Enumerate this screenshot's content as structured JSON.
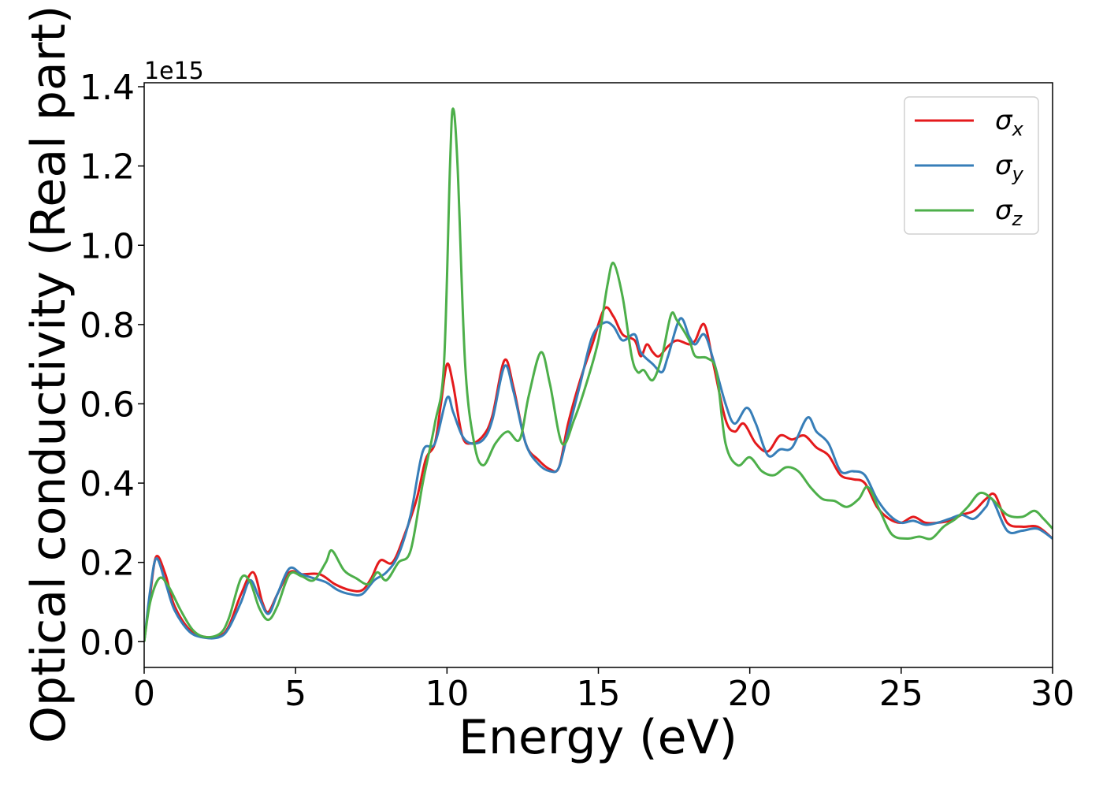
{
  "chart_data": {
    "type": "line",
    "title": "",
    "xlabel": "Energy (eV)",
    "ylabel": "Optical conductivity (Real part)",
    "y_offset_label": "1e15",
    "xlim": [
      0,
      30
    ],
    "ylim": [
      -0.065,
      1.41
    ],
    "xticks": [
      0,
      5,
      10,
      15,
      20,
      25,
      30
    ],
    "xtick_labels": [
      "0",
      "5",
      "10",
      "15",
      "20",
      "25",
      "30"
    ],
    "yticks": [
      0.0,
      0.2,
      0.4,
      0.6,
      0.8,
      1.0,
      1.2,
      1.4
    ],
    "ytick_labels": [
      "0.0",
      "0.2",
      "0.4",
      "0.6",
      "0.8",
      "1.0",
      "1.2",
      "1.4"
    ],
    "grid": false,
    "legend_position": "top-right",
    "series": [
      {
        "name": "σ_x",
        "legend_main": "σ",
        "legend_sub": "x",
        "color": "#e41a1c",
        "points": [
          [
            0,
            0.0
          ],
          [
            0.2,
            0.12
          ],
          [
            0.4,
            0.215
          ],
          [
            0.7,
            0.17
          ],
          [
            1.0,
            0.09
          ],
          [
            1.5,
            0.03
          ],
          [
            2.0,
            0.012
          ],
          [
            2.5,
            0.015
          ],
          [
            2.8,
            0.04
          ],
          [
            3.2,
            0.12
          ],
          [
            3.6,
            0.175
          ],
          [
            3.9,
            0.1
          ],
          [
            4.1,
            0.075
          ],
          [
            4.4,
            0.12
          ],
          [
            4.8,
            0.175
          ],
          [
            5.2,
            0.17
          ],
          [
            5.8,
            0.17
          ],
          [
            6.3,
            0.145
          ],
          [
            6.8,
            0.13
          ],
          [
            7.2,
            0.13
          ],
          [
            7.5,
            0.16
          ],
          [
            7.8,
            0.205
          ],
          [
            8.2,
            0.2
          ],
          [
            8.6,
            0.27
          ],
          [
            9.0,
            0.36
          ],
          [
            9.3,
            0.46
          ],
          [
            9.6,
            0.5
          ],
          [
            9.8,
            0.6
          ],
          [
            10.0,
            0.7
          ],
          [
            10.2,
            0.65
          ],
          [
            10.5,
            0.52
          ],
          [
            10.8,
            0.5
          ],
          [
            11.2,
            0.52
          ],
          [
            11.5,
            0.57
          ],
          [
            11.9,
            0.71
          ],
          [
            12.2,
            0.64
          ],
          [
            12.6,
            0.5
          ],
          [
            13.0,
            0.46
          ],
          [
            13.4,
            0.435
          ],
          [
            13.7,
            0.44
          ],
          [
            14.0,
            0.55
          ],
          [
            14.4,
            0.66
          ],
          [
            14.8,
            0.75
          ],
          [
            15.2,
            0.84
          ],
          [
            15.5,
            0.82
          ],
          [
            15.8,
            0.775
          ],
          [
            16.2,
            0.76
          ],
          [
            16.4,
            0.72
          ],
          [
            16.6,
            0.75
          ],
          [
            16.8,
            0.73
          ],
          [
            17.0,
            0.72
          ],
          [
            17.3,
            0.745
          ],
          [
            17.6,
            0.76
          ],
          [
            18.0,
            0.75
          ],
          [
            18.2,
            0.76
          ],
          [
            18.5,
            0.8
          ],
          [
            18.8,
            0.7
          ],
          [
            19.2,
            0.56
          ],
          [
            19.5,
            0.53
          ],
          [
            19.8,
            0.55
          ],
          [
            20.2,
            0.5
          ],
          [
            20.6,
            0.48
          ],
          [
            21.0,
            0.52
          ],
          [
            21.4,
            0.51
          ],
          [
            21.8,
            0.52
          ],
          [
            22.2,
            0.49
          ],
          [
            22.6,
            0.47
          ],
          [
            23.0,
            0.42
          ],
          [
            23.4,
            0.41
          ],
          [
            23.8,
            0.4
          ],
          [
            24.2,
            0.34
          ],
          [
            24.6,
            0.31
          ],
          [
            25.0,
            0.3
          ],
          [
            25.4,
            0.315
          ],
          [
            25.8,
            0.3
          ],
          [
            26.2,
            0.3
          ],
          [
            26.6,
            0.305
          ],
          [
            27.0,
            0.32
          ],
          [
            27.4,
            0.33
          ],
          [
            27.8,
            0.36
          ],
          [
            28.1,
            0.37
          ],
          [
            28.5,
            0.3
          ],
          [
            29.0,
            0.29
          ],
          [
            29.5,
            0.29
          ],
          [
            30.0,
            0.26
          ]
        ]
      },
      {
        "name": "σ_y",
        "legend_main": "σ",
        "legend_sub": "y",
        "color": "#377eb8",
        "points": [
          [
            0,
            0.0
          ],
          [
            0.2,
            0.13
          ],
          [
            0.4,
            0.21
          ],
          [
            0.7,
            0.15
          ],
          [
            1.0,
            0.08
          ],
          [
            1.5,
            0.025
          ],
          [
            2.0,
            0.01
          ],
          [
            2.5,
            0.012
          ],
          [
            2.8,
            0.035
          ],
          [
            3.2,
            0.1
          ],
          [
            3.5,
            0.155
          ],
          [
            3.8,
            0.11
          ],
          [
            4.1,
            0.07
          ],
          [
            4.4,
            0.12
          ],
          [
            4.8,
            0.185
          ],
          [
            5.2,
            0.17
          ],
          [
            5.6,
            0.16
          ],
          [
            6.0,
            0.15
          ],
          [
            6.4,
            0.13
          ],
          [
            6.8,
            0.12
          ],
          [
            7.2,
            0.12
          ],
          [
            7.6,
            0.155
          ],
          [
            8.0,
            0.175
          ],
          [
            8.4,
            0.22
          ],
          [
            8.8,
            0.32
          ],
          [
            9.2,
            0.48
          ],
          [
            9.6,
            0.5
          ],
          [
            10.0,
            0.615
          ],
          [
            10.2,
            0.58
          ],
          [
            10.5,
            0.52
          ],
          [
            10.8,
            0.5
          ],
          [
            11.2,
            0.51
          ],
          [
            11.5,
            0.56
          ],
          [
            11.9,
            0.695
          ],
          [
            12.2,
            0.63
          ],
          [
            12.6,
            0.5
          ],
          [
            13.0,
            0.45
          ],
          [
            13.4,
            0.43
          ],
          [
            13.7,
            0.44
          ],
          [
            14.0,
            0.53
          ],
          [
            14.4,
            0.65
          ],
          [
            14.8,
            0.77
          ],
          [
            15.2,
            0.805
          ],
          [
            15.5,
            0.795
          ],
          [
            15.8,
            0.76
          ],
          [
            16.2,
            0.775
          ],
          [
            16.4,
            0.73
          ],
          [
            16.8,
            0.7
          ],
          [
            17.1,
            0.68
          ],
          [
            17.3,
            0.72
          ],
          [
            17.7,
            0.815
          ],
          [
            18.0,
            0.77
          ],
          [
            18.2,
            0.75
          ],
          [
            18.5,
            0.775
          ],
          [
            18.8,
            0.71
          ],
          [
            19.2,
            0.6
          ],
          [
            19.5,
            0.55
          ],
          [
            19.9,
            0.59
          ],
          [
            20.2,
            0.55
          ],
          [
            20.6,
            0.47
          ],
          [
            21.0,
            0.485
          ],
          [
            21.4,
            0.49
          ],
          [
            21.9,
            0.565
          ],
          [
            22.2,
            0.53
          ],
          [
            22.6,
            0.5
          ],
          [
            23.0,
            0.43
          ],
          [
            23.4,
            0.43
          ],
          [
            23.8,
            0.42
          ],
          [
            24.2,
            0.36
          ],
          [
            24.6,
            0.32
          ],
          [
            25.0,
            0.3
          ],
          [
            25.4,
            0.305
          ],
          [
            25.8,
            0.295
          ],
          [
            26.2,
            0.3
          ],
          [
            26.6,
            0.31
          ],
          [
            27.0,
            0.32
          ],
          [
            27.4,
            0.31
          ],
          [
            27.8,
            0.34
          ],
          [
            28.0,
            0.36
          ],
          [
            28.5,
            0.28
          ],
          [
            29.0,
            0.28
          ],
          [
            29.5,
            0.285
          ],
          [
            30.0,
            0.26
          ]
        ]
      },
      {
        "name": "σ_z",
        "legend_main": "σ",
        "legend_sub": "z",
        "color": "#4daf4a",
        "points": [
          [
            0,
            0.0
          ],
          [
            0.2,
            0.1
          ],
          [
            0.5,
            0.16
          ],
          [
            0.8,
            0.14
          ],
          [
            1.2,
            0.08
          ],
          [
            1.6,
            0.03
          ],
          [
            2.0,
            0.012
          ],
          [
            2.5,
            0.02
          ],
          [
            2.8,
            0.06
          ],
          [
            3.2,
            0.16
          ],
          [
            3.5,
            0.15
          ],
          [
            3.8,
            0.085
          ],
          [
            4.1,
            0.055
          ],
          [
            4.4,
            0.09
          ],
          [
            4.8,
            0.17
          ],
          [
            5.2,
            0.165
          ],
          [
            5.6,
            0.155
          ],
          [
            6.0,
            0.2
          ],
          [
            6.2,
            0.23
          ],
          [
            6.6,
            0.18
          ],
          [
            7.0,
            0.16
          ],
          [
            7.4,
            0.145
          ],
          [
            7.7,
            0.175
          ],
          [
            8.0,
            0.155
          ],
          [
            8.4,
            0.2
          ],
          [
            8.8,
            0.23
          ],
          [
            9.2,
            0.4
          ],
          [
            9.6,
            0.55
          ],
          [
            9.9,
            0.7
          ],
          [
            10.1,
            1.2
          ],
          [
            10.2,
            1.345
          ],
          [
            10.35,
            1.2
          ],
          [
            10.6,
            0.7
          ],
          [
            10.9,
            0.5
          ],
          [
            11.2,
            0.445
          ],
          [
            11.6,
            0.5
          ],
          [
            12.0,
            0.53
          ],
          [
            12.4,
            0.51
          ],
          [
            12.7,
            0.62
          ],
          [
            13.1,
            0.73
          ],
          [
            13.4,
            0.65
          ],
          [
            13.8,
            0.5
          ],
          [
            14.2,
            0.56
          ],
          [
            14.6,
            0.65
          ],
          [
            15.0,
            0.76
          ],
          [
            15.3,
            0.9
          ],
          [
            15.5,
            0.955
          ],
          [
            15.8,
            0.87
          ],
          [
            16.1,
            0.72
          ],
          [
            16.3,
            0.68
          ],
          [
            16.5,
            0.685
          ],
          [
            16.8,
            0.66
          ],
          [
            17.1,
            0.72
          ],
          [
            17.4,
            0.825
          ],
          [
            17.6,
            0.81
          ],
          [
            18.0,
            0.76
          ],
          [
            18.2,
            0.72
          ],
          [
            18.6,
            0.715
          ],
          [
            18.9,
            0.68
          ],
          [
            19.2,
            0.5
          ],
          [
            19.6,
            0.445
          ],
          [
            20.0,
            0.465
          ],
          [
            20.4,
            0.43
          ],
          [
            20.8,
            0.42
          ],
          [
            21.2,
            0.44
          ],
          [
            21.6,
            0.43
          ],
          [
            22.0,
            0.39
          ],
          [
            22.4,
            0.36
          ],
          [
            22.8,
            0.355
          ],
          [
            23.2,
            0.34
          ],
          [
            23.6,
            0.36
          ],
          [
            23.9,
            0.39
          ],
          [
            24.3,
            0.33
          ],
          [
            24.7,
            0.27
          ],
          [
            25.2,
            0.26
          ],
          [
            25.6,
            0.265
          ],
          [
            26.0,
            0.26
          ],
          [
            26.4,
            0.29
          ],
          [
            26.8,
            0.31
          ],
          [
            27.2,
            0.34
          ],
          [
            27.6,
            0.375
          ],
          [
            28.0,
            0.36
          ],
          [
            28.5,
            0.32
          ],
          [
            29.0,
            0.315
          ],
          [
            29.4,
            0.33
          ],
          [
            29.7,
            0.31
          ],
          [
            30.0,
            0.285
          ]
        ]
      }
    ]
  }
}
